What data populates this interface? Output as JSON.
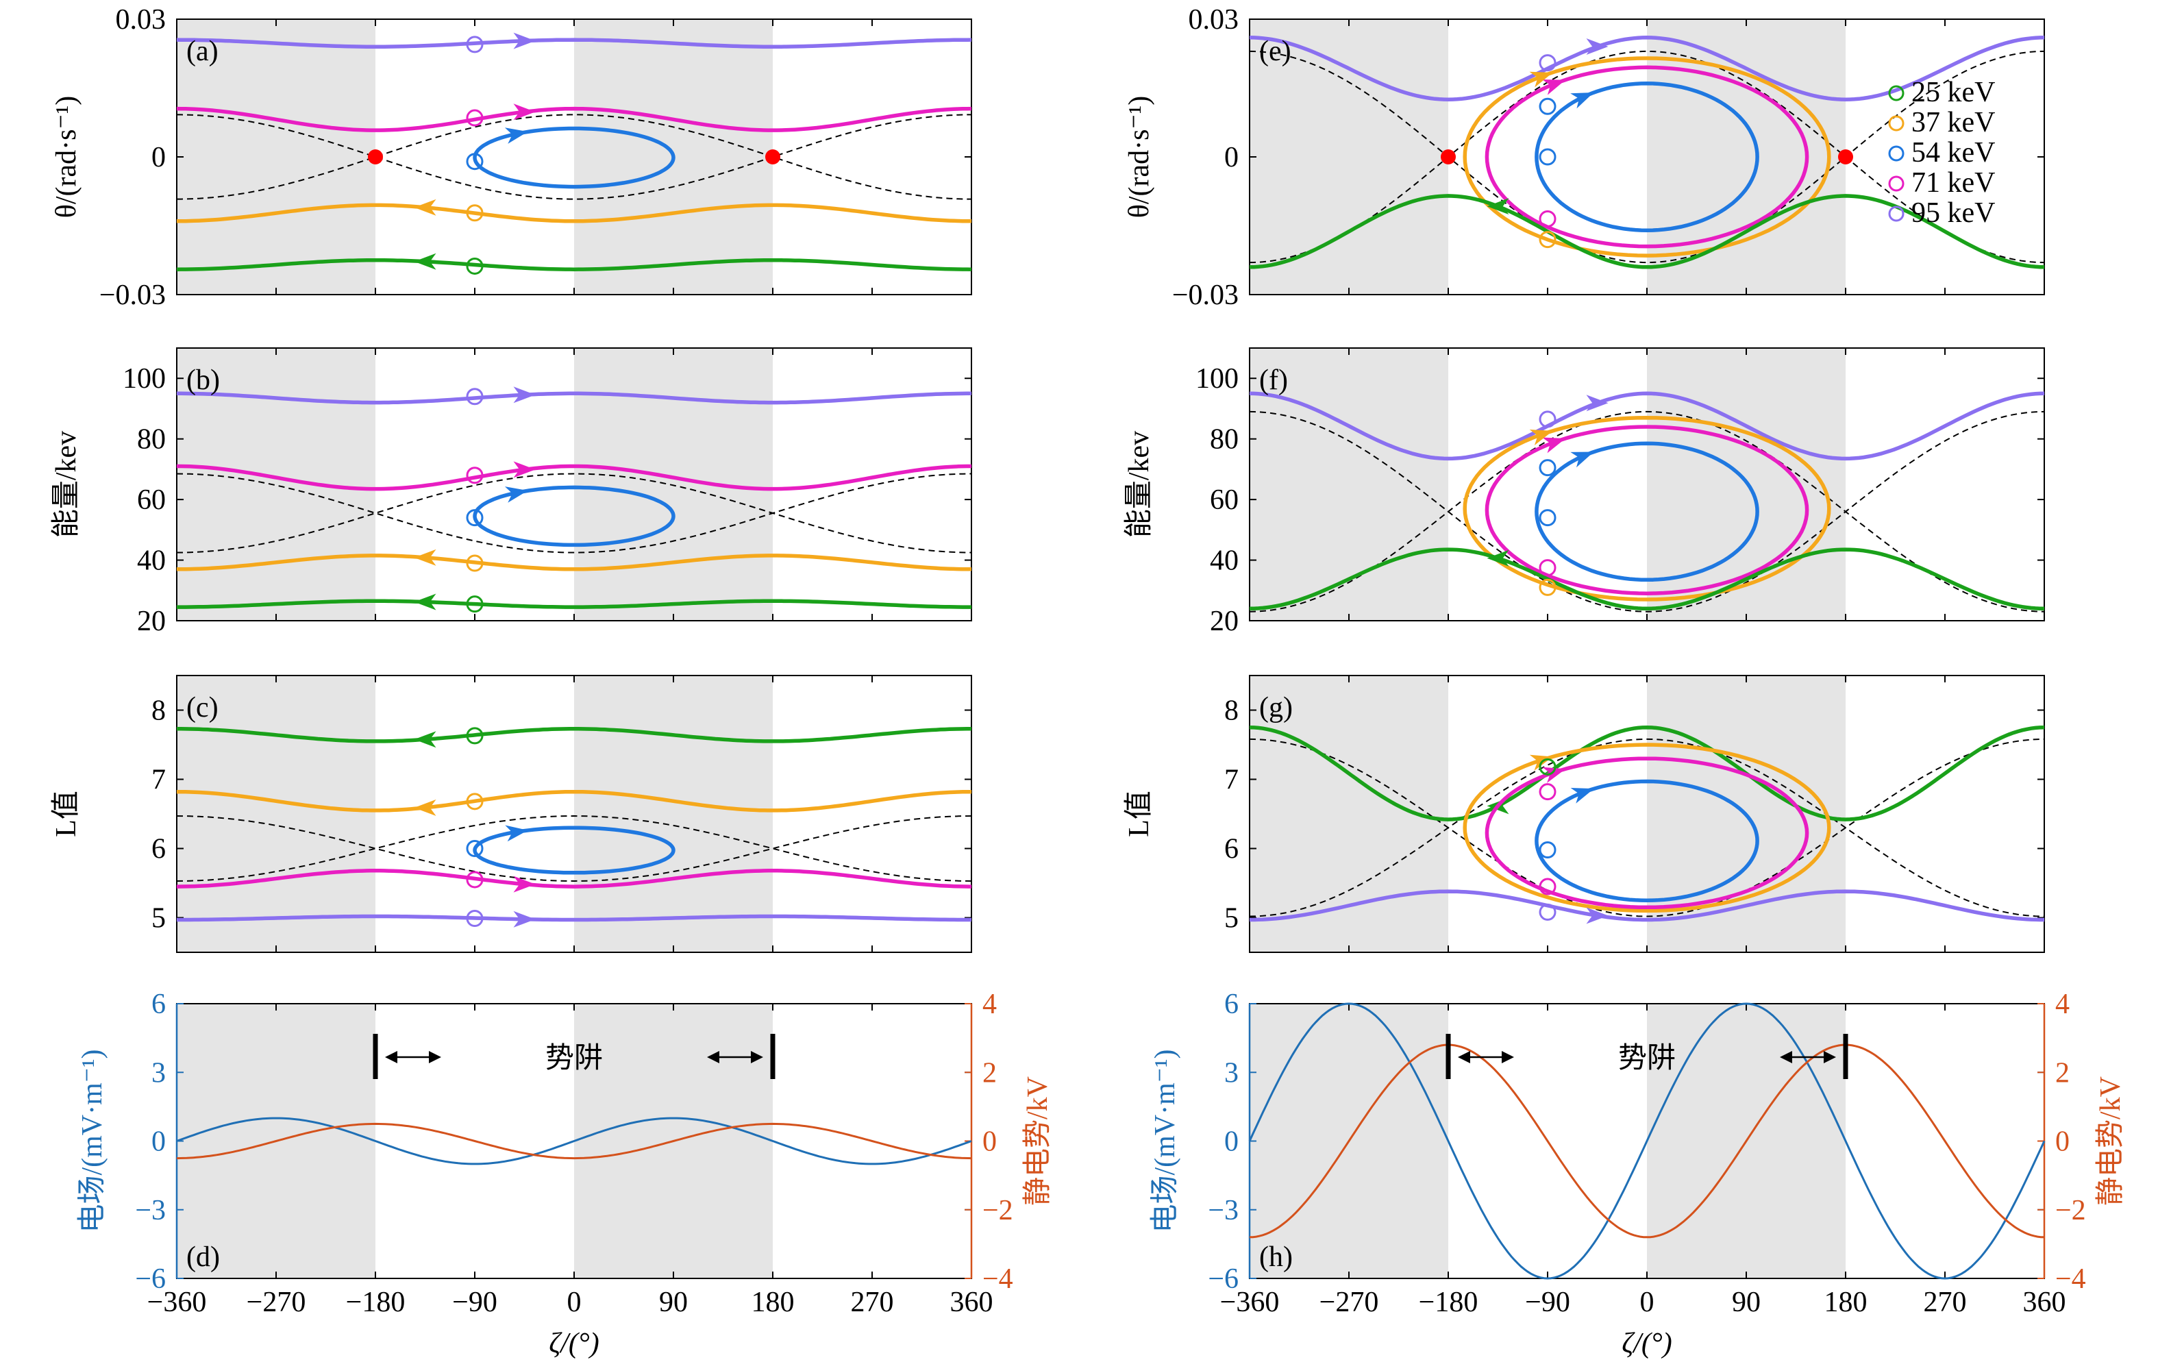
{
  "x_axis": {
    "label": "ζ/(°)",
    "ticks": [
      -360,
      -270,
      -180,
      -90,
      0,
      90,
      180,
      270,
      360
    ],
    "tick_labels": [
      "−360",
      "−270",
      "−180",
      "−90",
      "0",
      "90",
      "180",
      "270",
      "360"
    ],
    "xlim": [
      -360,
      360
    ]
  },
  "legend": {
    "placement": "right of panel (e)",
    "entries": [
      {
        "label": "25 keV",
        "color": "#1aa11a"
      },
      {
        "label": "37 keV",
        "color": "#f5a81c"
      },
      {
        "label": "54 keV",
        "color": "#1f78e0"
      },
      {
        "label": "71 keV",
        "color": "#e81ec2"
      },
      {
        "label": "95 keV",
        "color": "#8a70f0"
      }
    ]
  },
  "colors": {
    "shade": "#e5e5e5",
    "separatrix": "#000000",
    "saddle_point": "#ff0000",
    "efield": "#1f6fb5",
    "potential": "#d4521c"
  },
  "chart_data": [
    {
      "panel": "(a)",
      "type": "line",
      "ylabel": "θ/(rad·s⁻¹)",
      "ylim": [
        -0.03,
        0.03
      ],
      "yticks": [
        -0.03,
        0,
        0.03
      ],
      "ytick_labels": [
        "−0.03",
        "0",
        "0.03"
      ],
      "shaded_regions": [
        [
          -360,
          -180
        ],
        [
          0,
          180
        ]
      ],
      "series": [
        {
          "name": "95 keV",
          "kind": "open",
          "x": [
            -360,
            -180,
            0,
            180,
            360
          ],
          "y": [
            0.0255,
            0.024,
            0.0255,
            0.024,
            0.0255
          ],
          "direction": "right"
        },
        {
          "name": "71 keV",
          "kind": "open",
          "x": [
            -360,
            -180,
            0,
            180,
            360
          ],
          "y": [
            0.0105,
            0.0058,
            0.0105,
            0.0058,
            0.0105
          ],
          "direction": "right"
        },
        {
          "name": "54 keV",
          "kind": "trapped",
          "center": 0,
          "half_width": 90,
          "ymin": -0.0065,
          "ymax": 0.0062
        },
        {
          "name": "37 keV",
          "kind": "open",
          "x": [
            -360,
            -180,
            0,
            180,
            360
          ],
          "y": [
            -0.014,
            -0.0105,
            -0.014,
            -0.0105,
            -0.014
          ],
          "direction": "left"
        },
        {
          "name": "25 keV",
          "kind": "open",
          "x": [
            -360,
            -180,
            0,
            180,
            360
          ],
          "y": [
            -0.0245,
            -0.0225,
            -0.0245,
            -0.0225,
            -0.0245
          ],
          "direction": "left"
        }
      ],
      "separatrix": {
        "mid": 0.0,
        "amp": 0.0092
      },
      "saddle_points": [
        [
          -180,
          0
        ],
        [
          180,
          0
        ]
      ],
      "markers": [
        {
          "x": -90,
          "y": 0.0245
        },
        {
          "x": -90,
          "y": 0.0085
        },
        {
          "x": -90,
          "y": -0.001
        },
        {
          "x": -90,
          "y": -0.0122
        },
        {
          "x": -90,
          "y": -0.0238
        }
      ]
    },
    {
      "panel": "(b)",
      "type": "line",
      "ylabel": "能量/kev",
      "ylim": [
        20,
        110
      ],
      "yticks": [
        20,
        40,
        60,
        80,
        100
      ],
      "ytick_labels": [
        "20",
        "40",
        "60",
        "80",
        "100"
      ],
      "shaded_regions": [
        [
          -360,
          -180
        ],
        [
          0,
          180
        ]
      ],
      "series": [
        {
          "name": "95 keV",
          "kind": "open",
          "x": [
            -360,
            -180,
            0,
            180,
            360
          ],
          "y": [
            95,
            92,
            95,
            92,
            95
          ],
          "direction": "right"
        },
        {
          "name": "71 keV",
          "kind": "open",
          "x": [
            -360,
            -180,
            0,
            180,
            360
          ],
          "y": [
            71,
            63.5,
            71,
            63.5,
            71
          ],
          "direction": "right"
        },
        {
          "name": "54 keV",
          "kind": "trapped",
          "center": 0,
          "half_width": 90,
          "ymin": 45,
          "ymax": 64
        },
        {
          "name": "37 keV",
          "kind": "open",
          "x": [
            -360,
            -180,
            0,
            180,
            360
          ],
          "y": [
            37,
            41.5,
            37,
            41.5,
            37
          ],
          "direction": "left"
        },
        {
          "name": "25 keV",
          "kind": "open",
          "x": [
            -360,
            -180,
            0,
            180,
            360
          ],
          "y": [
            24.5,
            26.5,
            24.5,
            26.5,
            24.5
          ],
          "direction": "left"
        }
      ],
      "separatrix": {
        "mid": 55.5,
        "amp": 13
      },
      "markers": [
        {
          "x": -90,
          "y": 94
        },
        {
          "x": -90,
          "y": 68
        },
        {
          "x": -90,
          "y": 54
        },
        {
          "x": -90,
          "y": 39
        },
        {
          "x": -90,
          "y": 25.5
        }
      ]
    },
    {
      "panel": "(c)",
      "type": "line",
      "ylabel": "L值",
      "ylim": [
        4.5,
        8.5
      ],
      "yticks": [
        5,
        6,
        7,
        8
      ],
      "ytick_labels": [
        "5",
        "6",
        "7",
        "8"
      ],
      "shaded_regions": [
        [
          -360,
          -180
        ],
        [
          0,
          180
        ]
      ],
      "series": [
        {
          "name": "25 keV",
          "kind": "open",
          "x": [
            -360,
            -180,
            0,
            180,
            360
          ],
          "y": [
            7.73,
            7.55,
            7.73,
            7.55,
            7.73
          ],
          "direction": "left"
        },
        {
          "name": "37 keV",
          "kind": "open",
          "x": [
            -360,
            -180,
            0,
            180,
            360
          ],
          "y": [
            6.82,
            6.55,
            6.82,
            6.55,
            6.82
          ],
          "direction": "left"
        },
        {
          "name": "54 keV",
          "kind": "trapped",
          "center": 0,
          "half_width": 90,
          "ymin": 5.65,
          "ymax": 6.3
        },
        {
          "name": "71 keV",
          "kind": "open",
          "x": [
            -360,
            -180,
            0,
            180,
            360
          ],
          "y": [
            5.45,
            5.68,
            5.45,
            5.68,
            5.45
          ],
          "direction": "right"
        },
        {
          "name": "95 keV",
          "kind": "open",
          "x": [
            -360,
            -180,
            0,
            180,
            360
          ],
          "y": [
            4.97,
            5.02,
            4.97,
            5.02,
            4.97
          ],
          "direction": "right"
        }
      ],
      "separatrix": {
        "mid": 6.0,
        "amp": 0.47
      },
      "markers": [
        {
          "x": -90,
          "y": 7.63
        },
        {
          "x": -90,
          "y": 6.68
        },
        {
          "x": -90,
          "y": 6.0
        },
        {
          "x": -90,
          "y": 5.55
        },
        {
          "x": -90,
          "y": 4.99
        }
      ]
    },
    {
      "panel": "(d)",
      "type": "line",
      "ylabel": "电场/(mV·m⁻¹)",
      "ylabel_right": "静电势/kV",
      "ylim": [
        -6,
        6
      ],
      "yticks": [
        -6,
        -3,
        0,
        3,
        6
      ],
      "ytick_labels": [
        "−6",
        "−3",
        "0",
        "3",
        "6"
      ],
      "ylim_right": [
        -4,
        4
      ],
      "yticks_right": [
        -4,
        -2,
        0,
        2,
        4
      ],
      "ytick_labels_right": [
        "−4",
        "−2",
        "0",
        "2",
        "4"
      ],
      "shaded_regions": [
        [
          -360,
          -180
        ],
        [
          0,
          180
        ]
      ],
      "efield_amplitude": 1.0,
      "potential_amplitude": 0.5,
      "trap_label": "势阱",
      "trap_bounds": [
        -180,
        180
      ]
    },
    {
      "panel": "(e)",
      "type": "line",
      "ylabel": "θ/(rad·s⁻¹)",
      "ylim": [
        -0.03,
        0.03
      ],
      "yticks": [
        -0.03,
        0,
        0.03
      ],
      "ytick_labels": [
        "−0.03",
        "0",
        "0.03"
      ],
      "shaded_regions": [
        [
          -360,
          -180
        ],
        [
          0,
          180
        ]
      ],
      "series": [
        {
          "name": "95 keV",
          "kind": "open",
          "x": [
            -360,
            -180,
            0,
            180,
            360
          ],
          "y": [
            0.026,
            0.0125,
            0.026,
            0.0125,
            0.026
          ],
          "direction": "right"
        },
        {
          "name": "71 keV",
          "kind": "trapped",
          "center": 0,
          "half_width": 145,
          "ymin": -0.0195,
          "ymax": 0.0195
        },
        {
          "name": "37 keV",
          "kind": "trapped",
          "center": 0,
          "half_width": 165,
          "ymin": -0.0215,
          "ymax": 0.0215
        },
        {
          "name": "54 keV",
          "kind": "trapped",
          "center": 0,
          "half_width": 100,
          "ymin": -0.016,
          "ymax": 0.016
        },
        {
          "name": "25 keV",
          "kind": "open",
          "x": [
            -360,
            -180,
            0,
            180,
            360
          ],
          "y": [
            -0.024,
            -0.0085,
            -0.024,
            -0.0085,
            -0.024
          ],
          "direction": "left"
        }
      ],
      "separatrix": {
        "mid": 0.0,
        "amp": 0.023
      },
      "saddle_points": [
        [
          -180,
          0
        ],
        [
          180,
          0
        ]
      ],
      "markers": [
        {
          "x": -90,
          "y": 0.0205
        },
        {
          "x": -90,
          "y": 0.011
        },
        {
          "x": -90,
          "y": 0.0
        },
        {
          "x": -90,
          "y": -0.0135
        },
        {
          "x": -90,
          "y": -0.018
        }
      ]
    },
    {
      "panel": "(f)",
      "type": "line",
      "ylabel": "能量/kev",
      "ylim": [
        20,
        110
      ],
      "yticks": [
        20,
        40,
        60,
        80,
        100
      ],
      "ytick_labels": [
        "20",
        "40",
        "60",
        "80",
        "100"
      ],
      "shaded_regions": [
        [
          -360,
          -180
        ],
        [
          0,
          180
        ]
      ],
      "series": [
        {
          "name": "95 keV",
          "kind": "open",
          "x": [
            -360,
            -180,
            0,
            180,
            360
          ],
          "y": [
            95,
            73.5,
            95,
            73.5,
            95
          ],
          "direction": "right"
        },
        {
          "name": "71 keV",
          "kind": "trapped",
          "center": 0,
          "half_width": 145,
          "ymin": 29,
          "ymax": 84
        },
        {
          "name": "37 keV",
          "kind": "trapped",
          "center": 0,
          "half_width": 165,
          "ymin": 27,
          "ymax": 87
        },
        {
          "name": "54 keV",
          "kind": "trapped",
          "center": 0,
          "half_width": 100,
          "ymin": 33.5,
          "ymax": 78.5
        },
        {
          "name": "25 keV",
          "kind": "open",
          "x": [
            -360,
            -180,
            0,
            180,
            360
          ],
          "y": [
            24,
            43.5,
            24,
            43.5,
            24
          ],
          "direction": "left"
        }
      ],
      "separatrix": {
        "mid": 56,
        "amp": 33
      },
      "markers": [
        {
          "x": -90,
          "y": 86.5
        },
        {
          "x": -90,
          "y": 70.5
        },
        {
          "x": -90,
          "y": 54
        },
        {
          "x": -90,
          "y": 37.5
        },
        {
          "x": -90,
          "y": 31
        }
      ]
    },
    {
      "panel": "(g)",
      "type": "line",
      "ylabel": "L值",
      "ylim": [
        4.5,
        8.5
      ],
      "yticks": [
        5,
        6,
        7,
        8
      ],
      "ytick_labels": [
        "5",
        "6",
        "7",
        "8"
      ],
      "shaded_regions": [
        [
          -360,
          -180
        ],
        [
          0,
          180
        ]
      ],
      "series": [
        {
          "name": "25 keV",
          "kind": "open",
          "x": [
            -360,
            -180,
            0,
            180,
            360
          ],
          "y": [
            7.75,
            6.42,
            7.75,
            6.42,
            7.75
          ],
          "direction": "left"
        },
        {
          "name": "37 keV",
          "kind": "trapped",
          "center": 0,
          "half_width": 165,
          "ymin": 5.1,
          "ymax": 7.5
        },
        {
          "name": "71 keV",
          "kind": "trapped",
          "center": 0,
          "half_width": 145,
          "ymin": 5.15,
          "ymax": 7.3
        },
        {
          "name": "54 keV",
          "kind": "trapped",
          "center": 0,
          "half_width": 100,
          "ymin": 5.25,
          "ymax": 6.97
        },
        {
          "name": "95 keV",
          "kind": "open",
          "x": [
            -360,
            -180,
            0,
            180,
            360
          ],
          "y": [
            4.97,
            5.38,
            4.97,
            5.38,
            4.97
          ],
          "direction": "right"
        }
      ],
      "separatrix": {
        "mid": 6.3,
        "amp": 1.28
      },
      "markers": [
        {
          "x": -90,
          "y": 7.18
        },
        {
          "x": -90,
          "y": 6.82
        },
        {
          "x": -90,
          "y": 5.98
        },
        {
          "x": -90,
          "y": 5.45
        },
        {
          "x": -90,
          "y": 5.08
        }
      ]
    },
    {
      "panel": "(h)",
      "type": "line",
      "ylabel": "电场/(mV·m⁻¹)",
      "ylabel_right": "静电势/kV",
      "ylim": [
        -6,
        6
      ],
      "yticks": [
        -6,
        -3,
        0,
        3,
        6
      ],
      "ytick_labels": [
        "−6",
        "−3",
        "0",
        "3",
        "6"
      ],
      "ylim_right": [
        -4,
        4
      ],
      "yticks_right": [
        -4,
        -2,
        0,
        2,
        4
      ],
      "ytick_labels_right": [
        "−4",
        "−2",
        "0",
        "2",
        "4"
      ],
      "shaded_regions": [
        [
          -360,
          -180
        ],
        [
          0,
          180
        ]
      ],
      "efield_amplitude": 6.0,
      "potential_amplitude": 2.8,
      "trap_label": "势阱",
      "trap_bounds": [
        -180,
        180
      ]
    }
  ]
}
